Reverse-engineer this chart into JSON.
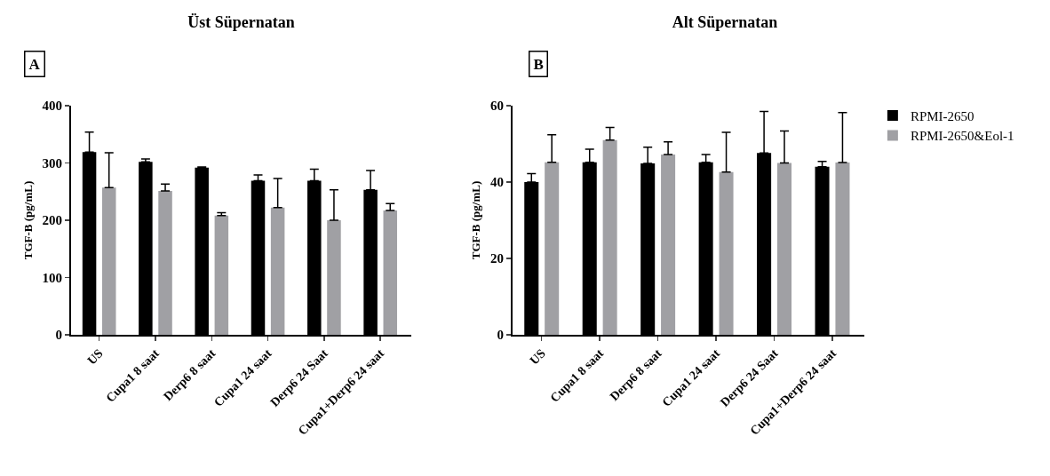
{
  "chart_data": [
    {
      "type": "bar",
      "title": "Üst Süpernatan",
      "ylabel": "TGF-B (pg/mL)",
      "annotations": [
        "A"
      ],
      "categories": [
        "US",
        "Cupa1 8 saat",
        "Derp6 8 saat",
        "Cupa1 24 saat",
        "Derp6 24 Saat",
        "Cupa1+Derp6 24 saat"
      ],
      "series": [
        {
          "color": "#000000",
          "values": [
            319,
            302,
            292,
            269,
            269,
            253
          ],
          "errors": [
            [
              319,
              354
            ],
            [
              302,
              307
            ],
            [
              292,
              293
            ],
            [
              269,
              279
            ],
            [
              269,
              289
            ],
            [
              253,
              287
            ]
          ]
        },
        {
          "color": "#a0a0a4",
          "values": [
            257,
            251,
            208,
            222,
            200,
            217
          ],
          "errors": [
            [
              257,
              318
            ],
            [
              251,
              263
            ],
            [
              208,
              213
            ],
            [
              222,
              273
            ],
            [
              200,
              253
            ],
            [
              217,
              229
            ]
          ]
        }
      ],
      "ylim": [
        0,
        400
      ],
      "yticks": [
        0,
        100,
        200,
        300,
        400
      ],
      "grid": false,
      "legend": false
    },
    {
      "type": "bar",
      "title": "Alt Süpernatan",
      "ylabel": "TGF-B (pg/mL)",
      "annotations": [
        "B"
      ],
      "categories": [
        "US",
        "Cupa1 8 saat",
        "Derp6 8 saat",
        "Cupa1 24 saat",
        "Derp6 24 Saat",
        "Cupa1+Derp6 24 saat"
      ],
      "series": [
        {
          "name": "RPMI-2650",
          "color": "#000000",
          "values": [
            40,
            45.2,
            44.9,
            45.2,
            47.6,
            44
          ],
          "errors": [
            [
              40,
              42.2
            ],
            [
              45.2,
              48.6
            ],
            [
              44.9,
              49.1
            ],
            [
              45.2,
              47.2
            ],
            [
              47.6,
              58.5
            ],
            [
              44,
              45.4
            ]
          ]
        },
        {
          "name": "RPMI-2650&Eol-1",
          "color": "#a0a0a4",
          "values": [
            45.2,
            51,
            47.2,
            42.6,
            45,
            45.1
          ],
          "errors": [
            [
              45.2,
              52.4
            ],
            [
              51,
              54.3
            ],
            [
              47.2,
              50.5
            ],
            [
              42.6,
              53
            ],
            [
              45,
              53.4
            ],
            [
              45.1,
              58.2
            ]
          ]
        }
      ],
      "ylim": [
        0,
        60
      ],
      "yticks": [
        0,
        20,
        40,
        60
      ],
      "grid": false,
      "legend": "right"
    }
  ]
}
